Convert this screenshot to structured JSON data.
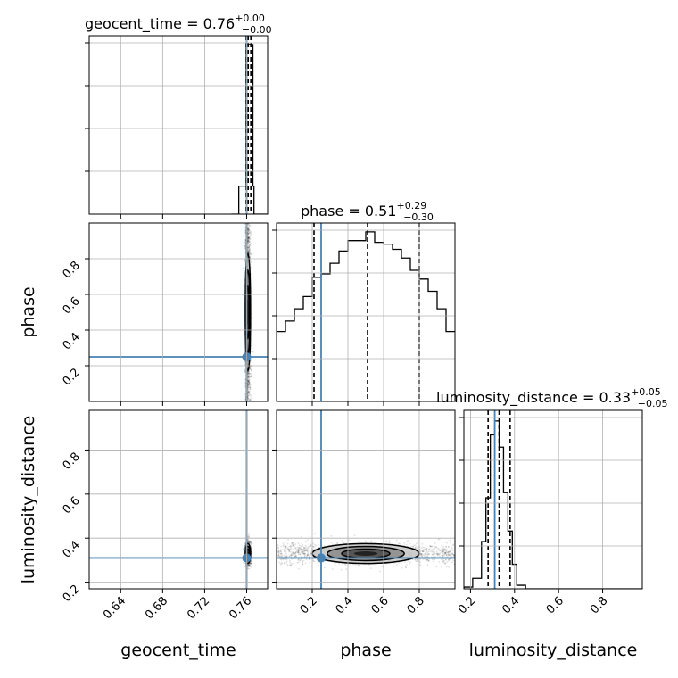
{
  "colors": {
    "truth": "#4682b4",
    "hist": "#000000",
    "grid": "#b0b0b0",
    "density_dark": "#1a1a1a"
  },
  "chart_data": {
    "type": "corner",
    "parameters": [
      "geocent_time",
      "phase",
      "luminosity_distance"
    ],
    "truths": {
      "geocent_time": 0.76,
      "phase": 0.25,
      "luminosity_distance": 0.31
    },
    "ranges": {
      "geocent_time": [
        0.61,
        0.78
      ],
      "phase": [
        0.0,
        1.0
      ],
      "luminosity_distance": [
        0.17,
        0.98
      ]
    },
    "ticks": {
      "geocent_time": [
        "0.64",
        "0.68",
        "0.72",
        "0.76"
      ],
      "phase": [
        "0.2",
        "0.4",
        "0.6",
        "0.8"
      ],
      "luminosity_distance": [
        "0.2",
        "0.4",
        "0.6",
        "0.8"
      ]
    },
    "titles": {
      "geocent_time": {
        "name": "geocent_time",
        "median": "0.76",
        "plus": "+0.00",
        "minus": "−0.00"
      },
      "phase": {
        "name": "phase",
        "median": "0.51",
        "plus": "+0.29",
        "minus": "−0.30"
      },
      "luminosity_distance": {
        "name": "luminosity_distance",
        "median": "0.33",
        "plus": "+0.05",
        "minus": "−0.05"
      }
    },
    "quantiles": {
      "geocent_time": [
        0.7595,
        0.7615,
        0.764
      ],
      "phase": [
        0.21,
        0.51,
        0.8
      ],
      "luminosity_distance": [
        0.28,
        0.33,
        0.38
      ]
    },
    "histograms": {
      "geocent_time": {
        "edges": [
          0.7455,
          0.7525,
          0.7595,
          0.7635,
          0.766,
          0.767,
          0.78
        ],
        "counts": [
          0,
          0.16,
          0.97,
          0.97,
          0.16,
          0
        ]
      },
      "phase": {
        "edges": [
          0.0,
          0.05,
          0.1,
          0.15,
          0.2,
          0.25,
          0.3,
          0.35,
          0.4,
          0.45,
          0.5,
          0.55,
          0.6,
          0.65,
          0.7,
          0.75,
          0.8,
          0.85,
          0.9,
          0.95,
          1.0
        ],
        "counts": [
          0.4,
          0.46,
          0.53,
          0.6,
          0.71,
          0.73,
          0.79,
          0.86,
          0.92,
          0.92,
          0.97,
          0.91,
          0.9,
          0.87,
          0.82,
          0.75,
          0.7,
          0.63,
          0.53,
          0.4
        ]
      },
      "luminosity_distance": {
        "edges": [
          0.17,
          0.21,
          0.25,
          0.27,
          0.29,
          0.31,
          0.33,
          0.35,
          0.37,
          0.39,
          0.41,
          0.45,
          0.98
        ],
        "counts": [
          0.01,
          0.06,
          0.27,
          0.52,
          0.88,
          0.96,
          0.81,
          0.55,
          0.33,
          0.14,
          0.02,
          0.0
        ]
      }
    },
    "pairs": [
      {
        "x": "geocent_time",
        "y": "phase",
        "center": [
          0.7612,
          0.5
        ],
        "spread": [
          0.0025,
          0.33
        ]
      },
      {
        "x": "geocent_time",
        "y": "luminosity_distance",
        "center": [
          0.7612,
          0.33
        ],
        "spread": [
          0.0025,
          0.045
        ]
      },
      {
        "x": "phase",
        "y": "luminosity_distance",
        "center": [
          0.5,
          0.33
        ],
        "spread": [
          0.3,
          0.045
        ]
      }
    ]
  }
}
